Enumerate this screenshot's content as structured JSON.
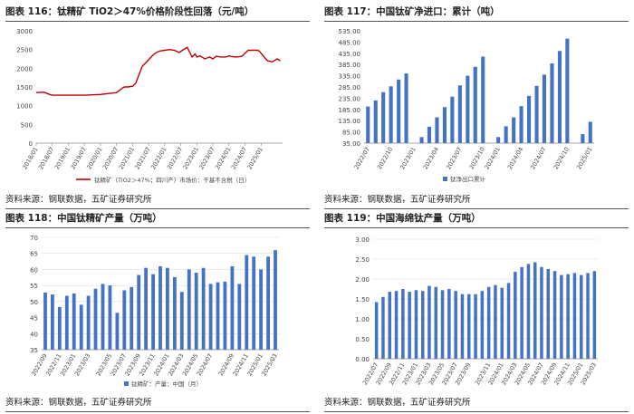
{
  "source_text": "资料来源：钢联数据，五矿证券研究所",
  "chart_data": [
    {
      "type": "line",
      "title": "图表 116：钛精矿 TiO2＞47%价格阶段性回落（元/吨）",
      "legend": "钛精矿（TiO2＞47%；四川产）市场价：干基不含税（日）",
      "legend_position": "bottom",
      "ylim": [
        0,
        3000
      ],
      "yticks": [
        "0",
        "500",
        "1000",
        "1500",
        "2000",
        "2500",
        "3000"
      ],
      "xlim": [
        2018.0,
        2025.67
      ],
      "xticks": [
        "2018/01",
        "2018/07",
        "2019/01",
        "2019/07",
        "2020/01",
        "2020/07",
        "2021/01",
        "2021/07",
        "2022/01",
        "2022/07",
        "2023/01",
        "2023/07",
        "2024/01",
        "2024/07",
        "2025/01"
      ],
      "color": "#c00000",
      "x": [
        2018.0,
        2018.25,
        2018.42,
        2018.5,
        2019.0,
        2019.5,
        2020.0,
        2020.08,
        2020.5,
        2020.7,
        2020.75,
        2020.85,
        2021.0,
        2021.1,
        2021.3,
        2021.45,
        2021.6,
        2021.7,
        2021.85,
        2022.0,
        2022.15,
        2022.3,
        2022.45,
        2022.55,
        2022.7,
        2022.85,
        2022.95,
        2023.0,
        2023.1,
        2023.25,
        2023.4,
        2023.5,
        2023.6,
        2023.75,
        2023.9,
        2024.0,
        2024.1,
        2024.25,
        2024.4,
        2024.5,
        2024.6,
        2024.8,
        2024.9,
        2024.95,
        2025.05,
        2025.2,
        2025.35,
        2025.5,
        2025.6
      ],
      "y": [
        1350,
        1360,
        1300,
        1280,
        1280,
        1280,
        1300,
        1310,
        1350,
        1480,
        1500,
        1500,
        1520,
        1600,
        2050,
        2180,
        2320,
        2400,
        2460,
        2480,
        2500,
        2480,
        2420,
        2480,
        2560,
        2300,
        2380,
        2300,
        2330,
        2250,
        2300,
        2250,
        2320,
        2300,
        2300,
        2330,
        2310,
        2300,
        2320,
        2400,
        2480,
        2480,
        2480,
        2450,
        2350,
        2200,
        2170,
        2250,
        2200
      ]
    },
    {
      "type": "bar",
      "title": "图表 117：中国钛矿净进口：累计（吨）",
      "legend": "钛净出口累计",
      "legend_position": "bottom",
      "ylim": [
        35,
        535
      ],
      "yticks": [
        "35.00",
        "85.00",
        "135.00",
        "185.00",
        "235.00",
        "285.00",
        "335.00",
        "385.00",
        "435.00",
        "485.00",
        "535.00"
      ],
      "xticks": [
        "2022/07",
        "2022/10",
        "2023/01",
        "2023/04",
        "2023/07",
        "2023/10",
        "2024/01",
        "2024/04",
        "2024/07",
        "2024/10",
        "2025/01"
      ],
      "color": "#4472c4",
      "values": [
        198,
        225,
        262,
        288,
        318,
        345,
        null,
        62,
        108,
        150,
        195,
        242,
        292,
        335,
        375,
        420,
        null,
        62,
        110,
        150,
        200,
        245,
        290,
        340,
        390,
        445,
        500,
        null,
        75,
        130
      ]
    },
    {
      "type": "bar",
      "title": "图表 118：中国钛精矿产量（万吨）",
      "legend": "钛精矿：产量：中国（月）",
      "legend_position": "bottom",
      "ylim": [
        35,
        70
      ],
      "yticks": [
        "35",
        "40",
        "45",
        "50",
        "55",
        "60",
        "65",
        "70"
      ],
      "xticks": [
        "2022/09",
        "2022/11",
        "2023/01",
        "2023/03",
        "2023/05",
        "2023/07",
        "2023/09",
        "2023/11",
        "2024/01",
        "2024/03",
        "2024/05",
        "2024/07",
        "2024/09",
        "2024/11",
        "2025/01",
        "2025/03"
      ],
      "color": "#4472c4",
      "values": [
        52.8,
        52.2,
        48.3,
        51.8,
        52.5,
        49.0,
        51.8,
        54.0,
        55.5,
        55.0,
        46.5,
        53.5,
        54.5,
        58.3,
        60.5,
        58.5,
        61.0,
        60.5,
        57.6,
        53.0,
        60.0,
        59.0,
        60.5,
        55.5,
        56.0,
        56.2,
        61.0,
        55.5,
        64.5,
        64.0,
        60.0,
        64.0,
        66.0
      ]
    },
    {
      "type": "bar",
      "title": "图表 119：中国海绵钛产量（万吨）",
      "legend": "",
      "ylim": [
        0,
        3
      ],
      "yticks": [
        "0.00",
        "0.50",
        "1.00",
        "1.50",
        "2.00",
        "2.50",
        "3.00"
      ],
      "xticks": [
        "2022/07",
        "2022/09",
        "2022/11",
        "2023/01",
        "2023/03",
        "2023/05",
        "2023/07",
        "2023/09",
        "2023/11",
        "2024/01",
        "2024/03",
        "2024/05",
        "2024/07",
        "2024/09",
        "2024/11",
        "2025/01",
        "2025/03"
      ],
      "color": "#4472c4",
      "values": [
        1.42,
        1.55,
        1.68,
        1.7,
        1.75,
        1.68,
        1.72,
        1.7,
        1.83,
        1.8,
        1.72,
        1.75,
        1.7,
        1.62,
        1.62,
        1.62,
        1.7,
        1.8,
        1.85,
        1.78,
        1.9,
        2.18,
        2.3,
        2.38,
        2.42,
        2.3,
        2.25,
        2.2,
        2.1,
        2.12,
        2.15,
        2.1,
        2.15,
        2.2
      ]
    }
  ]
}
